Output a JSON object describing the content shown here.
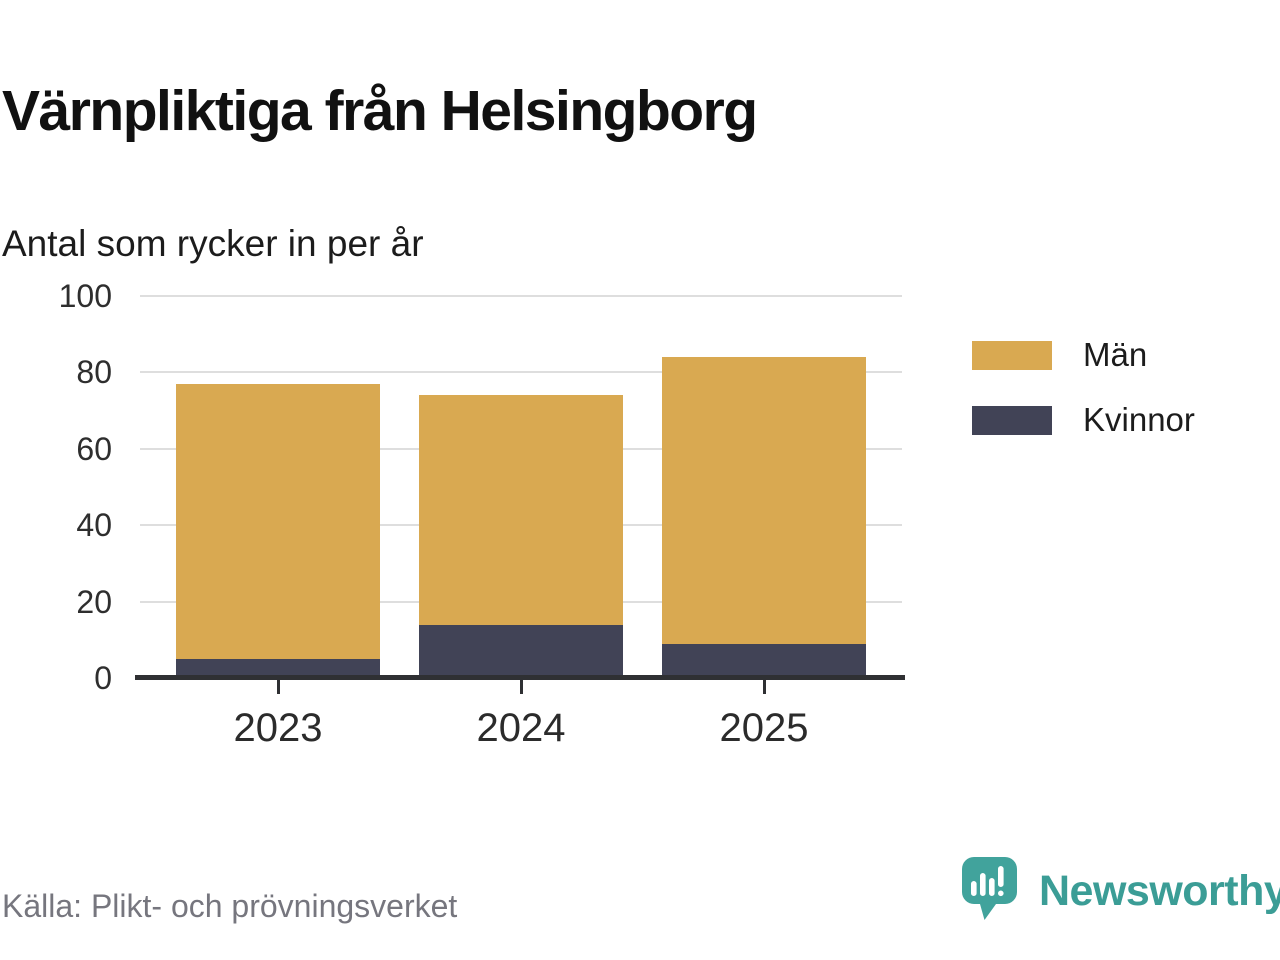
{
  "header": {
    "title": "Värnpliktiga från Helsingborg",
    "subtitle": "Antal som rycker in per år"
  },
  "chart_data": {
    "type": "bar",
    "stacked": true,
    "title": "Värnpliktiga från Helsingborg",
    "subtitle": "Antal som rycker in per år",
    "categories": [
      "2023",
      "2024",
      "2025"
    ],
    "series": [
      {
        "name": "Män",
        "color": "#D9A951",
        "values": [
          72,
          60,
          75
        ]
      },
      {
        "name": "Kvinnor",
        "color": "#414356",
        "values": [
          5,
          14,
          9
        ]
      }
    ],
    "stack_bottom_to_top": [
      "Kvinnor",
      "Män"
    ],
    "totals": [
      77,
      74,
      84
    ],
    "ylim": [
      0,
      100
    ],
    "yticks": [
      0,
      20,
      40,
      60,
      80,
      100
    ],
    "grid": true,
    "legend_position": "right-top"
  },
  "legend": {
    "items": [
      {
        "label": "Män",
        "color": "#D9A951"
      },
      {
        "label": "Kvinnor",
        "color": "#414356"
      }
    ]
  },
  "footer": {
    "source": "Källa: Plikt- och prövningsverket",
    "brand": "Newsworthy"
  },
  "icons": {
    "brand_icon": "newsworthy-speech-bubble-bar-chart-icon"
  },
  "colors": {
    "bar_men": "#D9A951",
    "bar_women": "#414356",
    "brand_teal": "#41A39C",
    "grid": "#DEDEDE",
    "axis": "#2F3033",
    "source_text": "#76767E"
  }
}
